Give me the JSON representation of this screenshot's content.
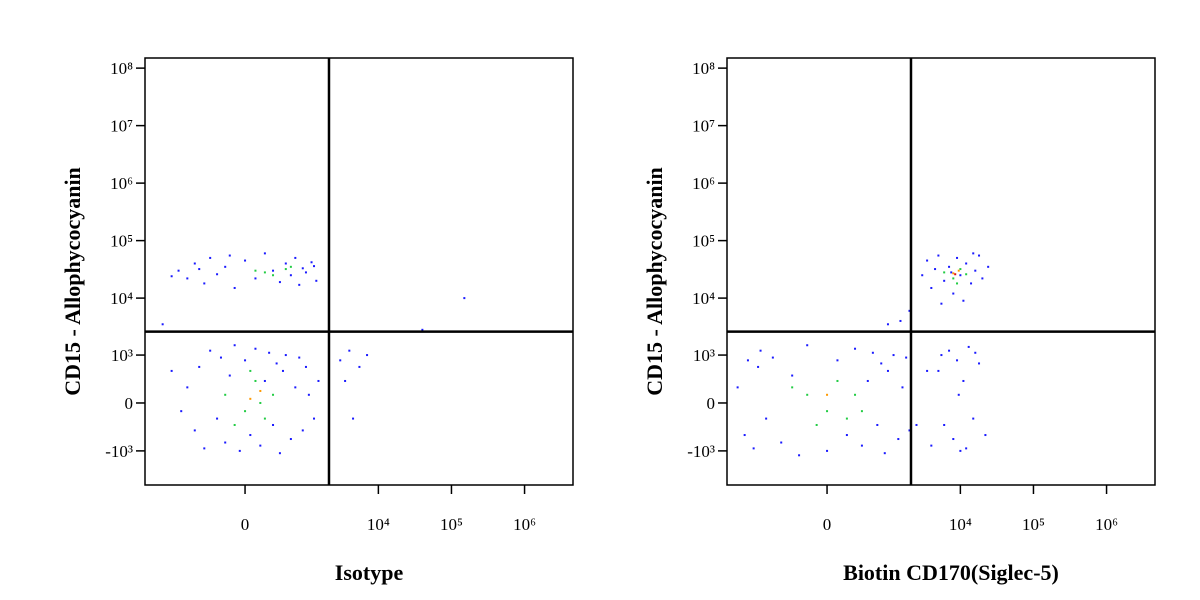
{
  "chart_data": [
    {
      "type": "scatter",
      "x_label": "Isotype",
      "y_label": "CD15 - Allophycocyanin",
      "scale": "biexponential",
      "xlim": [
        -3500,
        4600000
      ],
      "ylim": [
        -4000,
        150000000
      ],
      "xticks": [
        0,
        {
          "value": 10000,
          "label": "10⁴"
        },
        {
          "value": 100000,
          "label": "10⁵"
        },
        {
          "value": 1000000,
          "label": "10⁶"
        }
      ],
      "yticks": [
        {
          "value": -1000,
          "label": "-10³"
        },
        0,
        {
          "value": 1000,
          "label": "10³"
        },
        {
          "value": 10000,
          "label": "10⁴"
        },
        {
          "value": 100000,
          "label": "10⁵"
        },
        {
          "value": 1000000,
          "label": "10⁶"
        },
        {
          "value": 10000000,
          "label": "10⁷"
        },
        {
          "value": 100000000,
          "label": "10⁸"
        }
      ],
      "quadrant_gate": {
        "x": 2100,
        "y": 2600
      },
      "series": [
        {
          "color": "#1a1aff",
          "x": [
            -900,
            -700,
            -600,
            -500,
            -400,
            -300,
            -250,
            -200,
            -150,
            -100,
            -50,
            0,
            50,
            100,
            150,
            200,
            250,
            300,
            350,
            400,
            450,
            500,
            600,
            700,
            800,
            900,
            1000,
            1100,
            1300,
            -1100,
            -1500,
            1500,
            -1200,
            -900,
            -700,
            -500,
            -400,
            -300,
            -200,
            -100,
            0,
            100,
            200,
            300,
            400,
            500,
            600,
            700,
            800,
            900,
            1000,
            1200,
            1400,
            -1500,
            -600,
            1300,
            -150,
            3000,
            3500,
            4500,
            5500,
            7000,
            4000,
            40000,
            150000,
            -2000
          ],
          "y": [
            200,
            -400,
            600,
            -900,
            1200,
            -200,
            900,
            -700,
            400,
            1500,
            -1000,
            800,
            -500,
            1300,
            -800,
            300,
            1100,
            -300,
            700,
            -1100,
            500,
            1000,
            -600,
            200,
            900,
            -400,
            600,
            100,
            -200,
            -100,
            500,
            300,
            30000,
            22000,
            40000,
            18000,
            50000,
            26000,
            35000,
            15000,
            45000,
            22000,
            60000,
            30000,
            19000,
            40000,
            25000,
            50000,
            17000,
            33000,
            28000,
            42000,
            20000,
            24000,
            32000,
            36000,
            55000,
            800,
            300,
            -200,
            600,
            1000,
            1200,
            2800,
            10000,
            3500
          ]
        },
        {
          "color": "#22cc44",
          "x": [
            -200,
            0,
            100,
            200,
            50,
            -100,
            300,
            150,
            100,
            300,
            500,
            200,
            600
          ],
          "y": [
            100,
            -100,
            300,
            -200,
            500,
            -300,
            100,
            0,
            30000,
            25000,
            32000,
            28000,
            35000
          ]
        },
        {
          "color": "#ff9900",
          "x": [
            50,
            150
          ],
          "y": [
            50,
            150
          ]
        }
      ]
    },
    {
      "type": "scatter",
      "x_label": "Biotin CD170(Siglec-5)",
      "y_label": "CD15 - Allophycocyanin",
      "scale": "biexponential",
      "xlim": [
        -3500,
        4600000
      ],
      "ylim": [
        -4000,
        150000000
      ],
      "xticks": [
        0,
        {
          "value": 10000,
          "label": "10⁴"
        },
        {
          "value": 100000,
          "label": "10⁵"
        },
        {
          "value": 1000000,
          "label": "10⁶"
        }
      ],
      "yticks": [
        {
          "value": -1000,
          "label": "-10³"
        },
        0,
        {
          "value": 1000,
          "label": "10³"
        },
        {
          "value": 10000,
          "label": "10⁴"
        },
        {
          "value": 100000,
          "label": "10⁵"
        },
        {
          "value": 1000000,
          "label": "10⁶"
        },
        {
          "value": 10000000,
          "label": "10⁷"
        },
        {
          "value": 100000000,
          "label": "10⁸"
        }
      ],
      "quadrant_gate": {
        "x": 2100,
        "y": 2600
      },
      "series": [
        {
          "color": "#1a1aff",
          "x": [
            -2500,
            -2000,
            -1800,
            -1500,
            -1200,
            -1000,
            -800,
            -600,
            -400,
            -200,
            0,
            100,
            200,
            300,
            400,
            500,
            600,
            700,
            800,
            900,
            1000,
            1200,
            1400,
            1600,
            1800,
            2000,
            -1300,
            -300,
            3000,
            3500,
            4000,
            5000,
            6000,
            7000,
            8000,
            9000,
            10000,
            12000,
            14000,
            16000,
            18000,
            20000,
            24000,
            5500,
            11000,
            4500,
            15000,
            7500,
            4000,
            5000,
            6000,
            7000,
            8000,
            9000,
            10000,
            11000,
            13000,
            15000,
            18000,
            22000,
            5500,
            12000,
            9500,
            16000,
            2500,
            3500,
            1500,
            2000,
            1000
          ],
          "y": [
            200,
            -500,
            800,
            -900,
            1200,
            -200,
            900,
            -700,
            400,
            1500,
            -1000,
            800,
            -500,
            1300,
            -800,
            300,
            1100,
            -300,
            700,
            -1100,
            500,
            1000,
            -600,
            200,
            900,
            -400,
            600,
            -1200,
            25000,
            45000,
            15000,
            55000,
            20000,
            35000,
            12000,
            50000,
            25000,
            40000,
            18000,
            30000,
            55000,
            22000,
            35000,
            8000,
            9000,
            32000,
            60000,
            28000,
            -800,
            500,
            -300,
            1200,
            -600,
            800,
            -1000,
            300,
            1400,
            -200,
            700,
            -500,
            1000,
            -900,
            100,
            1100,
            -300,
            500,
            4000,
            6000,
            3500
          ]
        },
        {
          "color": "#22cc44",
          "x": [
            -200,
            0,
            100,
            200,
            -100,
            300,
            -400,
            400,
            6000,
            8000,
            10000,
            9000,
            12000
          ],
          "y": [
            100,
            -100,
            300,
            -200,
            -300,
            100,
            200,
            -100,
            28000,
            22000,
            32000,
            18000,
            26000
          ]
        },
        {
          "color": "#ff9900",
          "x": [
            0,
            8000,
            9500
          ],
          "y": [
            100,
            27000,
            30000
          ]
        },
        {
          "color": "#e01010",
          "x": [
            8500
          ],
          "y": [
            26000
          ]
        }
      ]
    }
  ]
}
